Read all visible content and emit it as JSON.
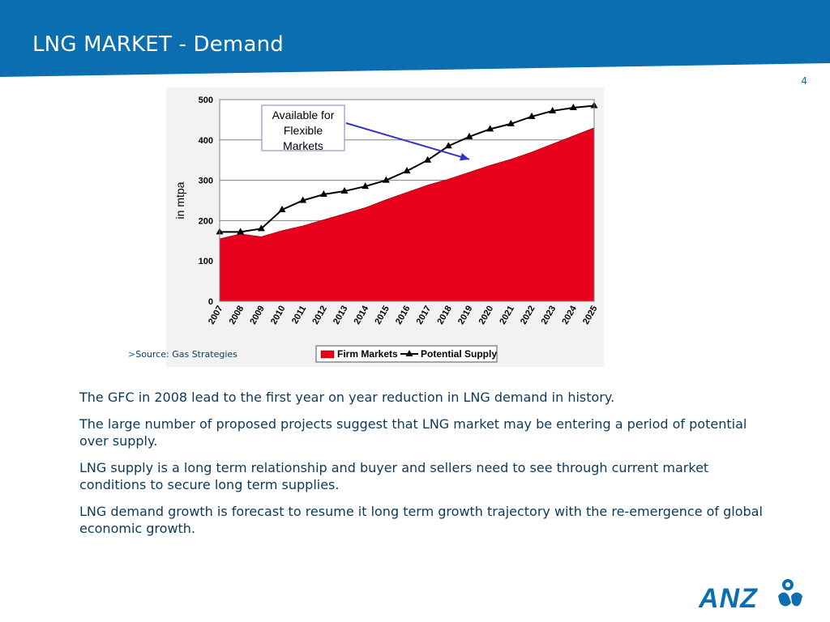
{
  "slide": {
    "title": "LNG MARKET - Demand",
    "page_number": "4",
    "source": "Source: Gas Strategies",
    "source_marker": ">",
    "bullets": [
      "The GFC in 2008 lead to the first year on year reduction in LNG demand in history.",
      "The large number of proposed projects suggest that LNG market may be entering a period of potential over supply.",
      "LNG supply is a long term relationship and buyer and sellers need to see through current market conditions to secure long term supplies.",
      "LNG demand growth is forecast to resume it long term growth trajectory with the re-emergence of global economic growth."
    ],
    "logo": {
      "name": "anz-logo",
      "text": "ANZ"
    }
  },
  "colors": {
    "header_blue": "#0a6eb1",
    "text_navy": "#0b3a5c",
    "firm_red": "#e8001c",
    "supply_black": "#000000",
    "annotation_arrow": "#3333cc",
    "plot_background": "#ffffff",
    "chart_panel": "#f2f2f2"
  },
  "chart_data": {
    "type": "area",
    "x": [
      "2007",
      "2008",
      "2009",
      "2010",
      "2011",
      "2012",
      "2013",
      "2014",
      "2015",
      "2016",
      "2017",
      "2018",
      "2019",
      "2020",
      "2021",
      "2022",
      "2023",
      "2024",
      "2025"
    ],
    "series": [
      {
        "name": "Firm Markets",
        "kind": "area",
        "values": [
          155,
          167,
          160,
          175,
          187,
          202,
          217,
          232,
          252,
          270,
          288,
          303,
          320,
          337,
          352,
          370,
          390,
          410,
          430
        ]
      },
      {
        "name": "Potential Supply",
        "kind": "line",
        "marker": "triangle",
        "values": [
          172,
          172,
          180,
          227,
          250,
          265,
          273,
          285,
          300,
          323,
          350,
          385,
          408,
          427,
          440,
          458,
          472,
          480,
          485
        ]
      }
    ],
    "ylabel": "in mtpa",
    "ylim": [
      0,
      500
    ],
    "yticks": [
      0,
      100,
      200,
      300,
      400,
      500
    ],
    "grid": true,
    "legend": "bottom",
    "annotation": {
      "text": [
        "Available for",
        "Flexible",
        "Markets"
      ],
      "arrow_to": {
        "x": "2019",
        "y": 360
      }
    }
  }
}
